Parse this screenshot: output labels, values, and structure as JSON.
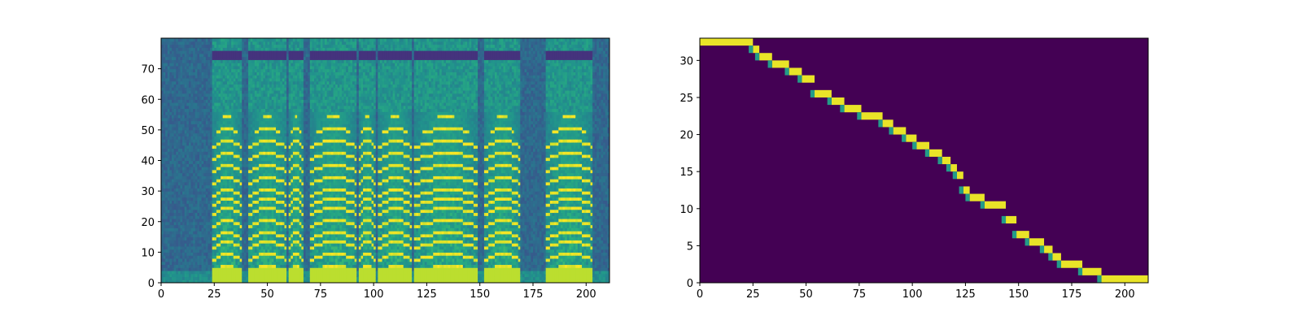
{
  "chart_data": [
    {
      "type": "heatmap",
      "title": "",
      "xlabel": "",
      "ylabel": "",
      "xlim": [
        0,
        211
      ],
      "ylim": [
        0,
        80
      ],
      "x_ticks": [
        "0",
        "25",
        "50",
        "75",
        "100",
        "125",
        "150",
        "175",
        "200"
      ],
      "y_ticks": [
        "0",
        "10",
        "20",
        "30",
        "40",
        "50",
        "60",
        "70"
      ],
      "colormap": "viridis",
      "content": "mel-spectrogram",
      "voiced_segments": [
        [
          24,
          37
        ],
        [
          41,
          58
        ],
        [
          60,
          66
        ],
        [
          70,
          91
        ],
        [
          93,
          100
        ],
        [
          102,
          117
        ],
        [
          119,
          148
        ],
        [
          152,
          168
        ],
        [
          181,
          202
        ]
      ],
      "silence_segments": [
        [
          0,
          21
        ],
        [
          172,
          180
        ],
        [
          203,
          211
        ]
      ],
      "harmonic_bins": [
        3,
        7,
        11,
        14,
        18,
        22,
        25,
        28,
        32,
        36,
        40,
        44,
        48,
        52
      ],
      "grid": false
    },
    {
      "type": "heatmap",
      "title": "",
      "xlabel": "",
      "ylabel": "",
      "xlim": [
        0,
        211
      ],
      "ylim": [
        0,
        33
      ],
      "x_ticks": [
        "0",
        "25",
        "50",
        "75",
        "100",
        "125",
        "150",
        "175",
        "200"
      ],
      "y_ticks": [
        "0",
        "5",
        "10",
        "15",
        "20",
        "25",
        "30"
      ],
      "colormap": "viridis",
      "content": "attention-alignment",
      "alignment_path": [
        [
          0,
          32
        ],
        [
          25,
          31
        ],
        [
          28,
          30
        ],
        [
          34,
          29
        ],
        [
          42,
          28
        ],
        [
          48,
          27
        ],
        [
          54,
          25
        ],
        [
          62,
          24
        ],
        [
          68,
          23
        ],
        [
          76,
          22
        ],
        [
          86,
          21
        ],
        [
          91,
          20
        ],
        [
          97,
          19
        ],
        [
          102,
          18
        ],
        [
          108,
          17
        ],
        [
          114,
          16
        ],
        [
          118,
          15
        ],
        [
          121,
          14
        ],
        [
          124,
          12
        ],
        [
          127,
          11
        ],
        [
          134,
          10
        ],
        [
          144,
          8
        ],
        [
          149,
          6
        ],
        [
          155,
          5
        ],
        [
          162,
          4
        ],
        [
          166,
          3
        ],
        [
          170,
          2
        ],
        [
          180,
          1
        ],
        [
          189,
          0
        ],
        [
          211,
          0
        ]
      ],
      "grid": false
    }
  ]
}
